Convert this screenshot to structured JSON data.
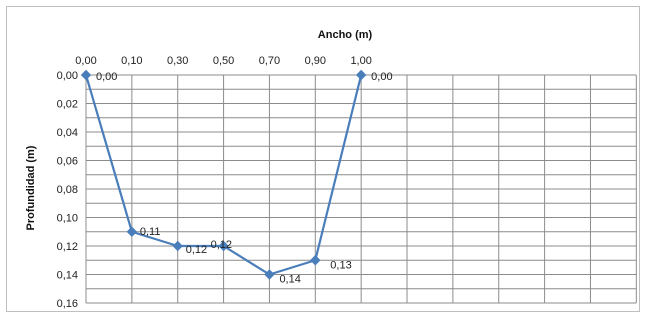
{
  "chart_data": {
    "type": "line",
    "title": "",
    "xlabel": "Ancho (m)",
    "ylabel": "Profundidad (m)",
    "x_axis_position": "top",
    "y_inverted": true,
    "x_categories": [
      "0,00",
      "0,10",
      "0,30",
      "0,50",
      "0,70",
      "0,90",
      "1,00"
    ],
    "y_ticks": [
      "0,00",
      "0,02",
      "0,04",
      "0,06",
      "0,08",
      "0,10",
      "0,12",
      "0,14",
      "0,16"
    ],
    "ylim": [
      0,
      0.16
    ],
    "grid": true,
    "legend": "none",
    "series": [
      {
        "values": [
          0.0,
          0.11,
          0.12,
          0.12,
          0.14,
          0.13,
          0.0
        ],
        "labels": [
          "0,00",
          "0,11",
          "0,12",
          "0,12",
          "0,14",
          "0,13",
          "0,00"
        ],
        "color": "#4a7ebb",
        "marker": "diamond"
      }
    ]
  }
}
